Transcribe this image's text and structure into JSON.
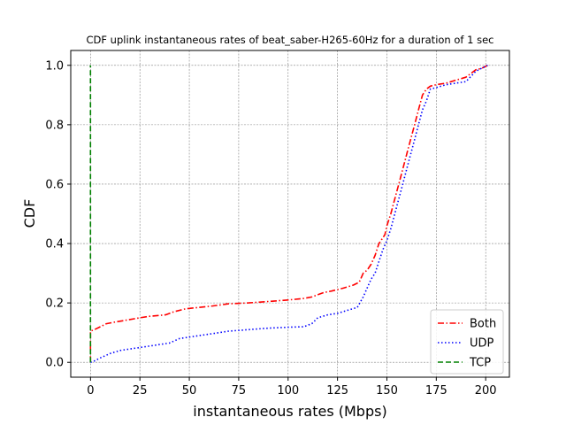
{
  "chart_data": {
    "type": "line",
    "title": "CDF uplink instantaneous rates of beat_saber-H265-60Hz for a duration of 1 sec",
    "xlabel": "instantaneous rates (Mbps)",
    "ylabel": "CDF",
    "xlim": [
      -10,
      212
    ],
    "ylim": [
      -0.05,
      1.05
    ],
    "xticks": [
      0,
      25,
      50,
      75,
      100,
      125,
      150,
      175,
      200
    ],
    "yticks": [
      0.0,
      0.2,
      0.4,
      0.6,
      0.8,
      1.0
    ],
    "xtick_labels": [
      "0",
      "25",
      "50",
      "75",
      "100",
      "125",
      "150",
      "175",
      "200"
    ],
    "ytick_labels": [
      "0.0",
      "0.2",
      "0.4",
      "0.6",
      "0.8",
      "1.0"
    ],
    "grid": true,
    "legend_position": "bottom-right",
    "series": [
      {
        "name": "Both",
        "color": "#ff0000",
        "style": "dashdot",
        "x": [
          0,
          0,
          2,
          5,
          8,
          12,
          18,
          25,
          30,
          38,
          42,
          48,
          55,
          62,
          70,
          80,
          90,
          100,
          108,
          112,
          118,
          122,
          128,
          133,
          136,
          138,
          140,
          142,
          144,
          146,
          147,
          149,
          150,
          152,
          154,
          156,
          158,
          160,
          162,
          164,
          166,
          168,
          170,
          172,
          175,
          180,
          185,
          190,
          195,
          198,
          201
        ],
        "y": [
          0.0,
          0.105,
          0.11,
          0.12,
          0.13,
          0.135,
          0.142,
          0.15,
          0.155,
          0.16,
          0.17,
          0.18,
          0.185,
          0.19,
          0.197,
          0.2,
          0.205,
          0.21,
          0.215,
          0.22,
          0.235,
          0.24,
          0.25,
          0.26,
          0.27,
          0.3,
          0.31,
          0.33,
          0.36,
          0.4,
          0.41,
          0.43,
          0.46,
          0.5,
          0.55,
          0.6,
          0.65,
          0.7,
          0.75,
          0.8,
          0.85,
          0.9,
          0.92,
          0.93,
          0.935,
          0.94,
          0.95,
          0.96,
          0.985,
          0.99,
          1.0
        ]
      },
      {
        "name": "UDP",
        "color": "#0000ff",
        "style": "dotted",
        "x": [
          0,
          2,
          5,
          10,
          15,
          20,
          25,
          30,
          35,
          40,
          45,
          50,
          55,
          60,
          65,
          70,
          80,
          90,
          100,
          108,
          112,
          115,
          120,
          125,
          130,
          135,
          138,
          140,
          142,
          144,
          146,
          148,
          150,
          152,
          154,
          156,
          158,
          160,
          162,
          164,
          166,
          168,
          170,
          172,
          175,
          180,
          185,
          190,
          195,
          198,
          201
        ],
        "y": [
          0.0,
          0.005,
          0.015,
          0.03,
          0.04,
          0.045,
          0.05,
          0.055,
          0.06,
          0.065,
          0.08,
          0.085,
          0.09,
          0.095,
          0.1,
          0.105,
          0.11,
          0.115,
          0.118,
          0.12,
          0.13,
          0.15,
          0.16,
          0.165,
          0.175,
          0.185,
          0.22,
          0.25,
          0.28,
          0.3,
          0.34,
          0.38,
          0.41,
          0.45,
          0.5,
          0.55,
          0.6,
          0.65,
          0.7,
          0.75,
          0.8,
          0.85,
          0.88,
          0.92,
          0.925,
          0.935,
          0.94,
          0.945,
          0.98,
          0.99,
          1.0
        ]
      },
      {
        "name": "TCP",
        "color": "#008000",
        "style": "dashed",
        "x": [
          0,
          0
        ],
        "y": [
          0.0,
          1.0
        ]
      }
    ]
  }
}
